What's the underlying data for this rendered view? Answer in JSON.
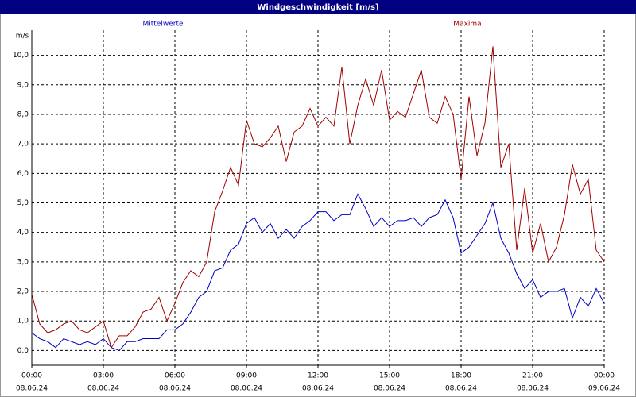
{
  "chart_data": {
    "type": "line",
    "title": "Windgeschwindigkeit [m/s]",
    "y_unit": "m/s",
    "x": [
      0,
      20,
      40,
      60,
      80,
      100,
      120,
      140,
      160,
      180,
      200,
      220,
      240,
      260,
      280,
      300,
      320,
      340,
      360,
      380,
      400,
      420,
      440,
      460,
      480,
      500,
      520,
      540,
      560,
      580,
      600,
      620,
      640,
      660,
      680,
      700,
      720,
      740,
      760,
      780,
      800,
      820,
      840,
      860,
      880,
      900,
      920,
      940,
      960,
      980,
      1000,
      1020,
      1040,
      1060,
      1080,
      1100,
      1120,
      1140,
      1160,
      1180,
      1200,
      1220,
      1240,
      1260,
      1280,
      1300,
      1320,
      1340,
      1360,
      1380,
      1400,
      1420,
      1440
    ],
    "series": [
      {
        "name": "Mittelwerte",
        "color": "#0000c0",
        "values": [
          0.6,
          0.4,
          0.3,
          0.1,
          0.4,
          0.3,
          0.2,
          0.3,
          0.2,
          0.4,
          0.1,
          0.0,
          0.3,
          0.3,
          0.4,
          0.4,
          0.4,
          0.7,
          0.7,
          0.9,
          1.3,
          1.8,
          2.0,
          2.7,
          2.8,
          3.4,
          3.6,
          4.3,
          4.5,
          4.0,
          4.3,
          3.8,
          4.1,
          3.8,
          4.2,
          4.4,
          4.7,
          4.7,
          4.4,
          4.6,
          4.6,
          5.3,
          4.8,
          4.2,
          4.5,
          4.2,
          4.4,
          4.4,
          4.5,
          4.2,
          4.5,
          4.6,
          5.1,
          4.5,
          3.3,
          3.5,
          3.9,
          4.3,
          5.0,
          3.8,
          3.3,
          2.6,
          2.1,
          2.4,
          1.8,
          2.0,
          2.0,
          2.1,
          1.1,
          1.8,
          1.5,
          2.1,
          1.6
        ]
      },
      {
        "name": "Maxima",
        "color": "#a00000",
        "values": [
          1.9,
          0.9,
          0.6,
          0.7,
          0.9,
          1.0,
          0.7,
          0.6,
          0.8,
          1.0,
          0.1,
          0.5,
          0.5,
          0.8,
          1.3,
          1.4,
          1.8,
          1.0,
          1.6,
          2.3,
          2.7,
          2.5,
          3.0,
          4.7,
          5.4,
          6.2,
          5.6,
          7.8,
          7.0,
          6.9,
          7.2,
          7.6,
          6.4,
          7.4,
          7.6,
          8.2,
          7.6,
          7.9,
          7.6,
          9.6,
          7.0,
          8.3,
          9.2,
          8.3,
          9.5,
          7.8,
          8.1,
          7.9,
          8.7,
          9.5,
          7.9,
          7.7,
          8.6,
          8.0,
          5.8,
          8.6,
          6.6,
          7.7,
          10.3,
          6.2,
          7.0,
          3.4,
          5.5,
          3.3,
          4.3,
          3.0,
          3.5,
          4.6,
          6.3,
          5.3,
          5.8,
          3.4,
          3.0
        ]
      }
    ],
    "xlim": [
      0,
      1440
    ],
    "xticks": [
      {
        "value": 0,
        "label": "00:00",
        "date": "08.06.24"
      },
      {
        "value": 180,
        "label": "03:00",
        "date": "08.06.24"
      },
      {
        "value": 360,
        "label": "06:00",
        "date": "08.06.24"
      },
      {
        "value": 540,
        "label": "09:00",
        "date": "08.06.24"
      },
      {
        "value": 720,
        "label": "12:00",
        "date": "08.06.24"
      },
      {
        "value": 900,
        "label": "15:00",
        "date": "08.06.24"
      },
      {
        "value": 1080,
        "label": "18:00",
        "date": "08.06.24"
      },
      {
        "value": 1260,
        "label": "21:00",
        "date": "08.06.24"
      },
      {
        "value": 1440,
        "label": "00:00",
        "date": "09.06.24"
      }
    ],
    "ylim": [
      -0.5,
      10.85
    ],
    "yticks": [
      {
        "value": 0,
        "label": "0,0"
      },
      {
        "value": 1,
        "label": "1,0"
      },
      {
        "value": 2,
        "label": "2,0"
      },
      {
        "value": 3,
        "label": "3,0"
      },
      {
        "value": 4,
        "label": "4,0"
      },
      {
        "value": 5,
        "label": "5,0"
      },
      {
        "value": 6,
        "label": "6,0"
      },
      {
        "value": 7,
        "label": "7,0"
      },
      {
        "value": 8,
        "label": "8,0"
      },
      {
        "value": 9,
        "label": "9,0"
      },
      {
        "value": 10,
        "label": "10,0"
      }
    ],
    "grid": true
  }
}
